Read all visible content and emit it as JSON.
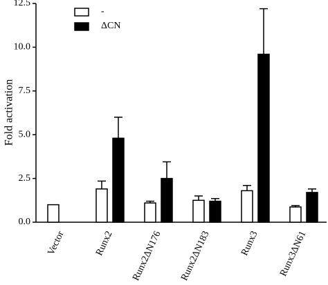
{
  "chart_data": {
    "type": "bar",
    "y_label": "Fold activation",
    "categories": [
      "Vector",
      "Runx2",
      "Runx2ΔN176",
      "Runx2ΔN183",
      "Runx3",
      "Runx3ΔN61"
    ],
    "series": [
      {
        "name": "-",
        "color": "#ffffff",
        "values": [
          1.0,
          1.9,
          1.1,
          1.25,
          1.8,
          0.87
        ],
        "errors": [
          null,
          0.45,
          0.1,
          0.25,
          0.3,
          0.08
        ]
      },
      {
        "name": "ΔCN",
        "color": "#000000",
        "values": [
          null,
          4.8,
          2.5,
          1.2,
          9.6,
          1.7
        ],
        "errors": [
          null,
          1.2,
          0.95,
          0.15,
          2.6,
          0.2
        ]
      }
    ],
    "ylim": [
      0,
      12.5
    ],
    "yticks": [
      {
        "value": 0,
        "label": "0.0"
      },
      2.5,
      {
        "value": 5,
        "label": "5.0"
      },
      7.5,
      {
        "value": 10,
        "label": "10.0"
      },
      12.5
    ],
    "legend": "upper left"
  }
}
